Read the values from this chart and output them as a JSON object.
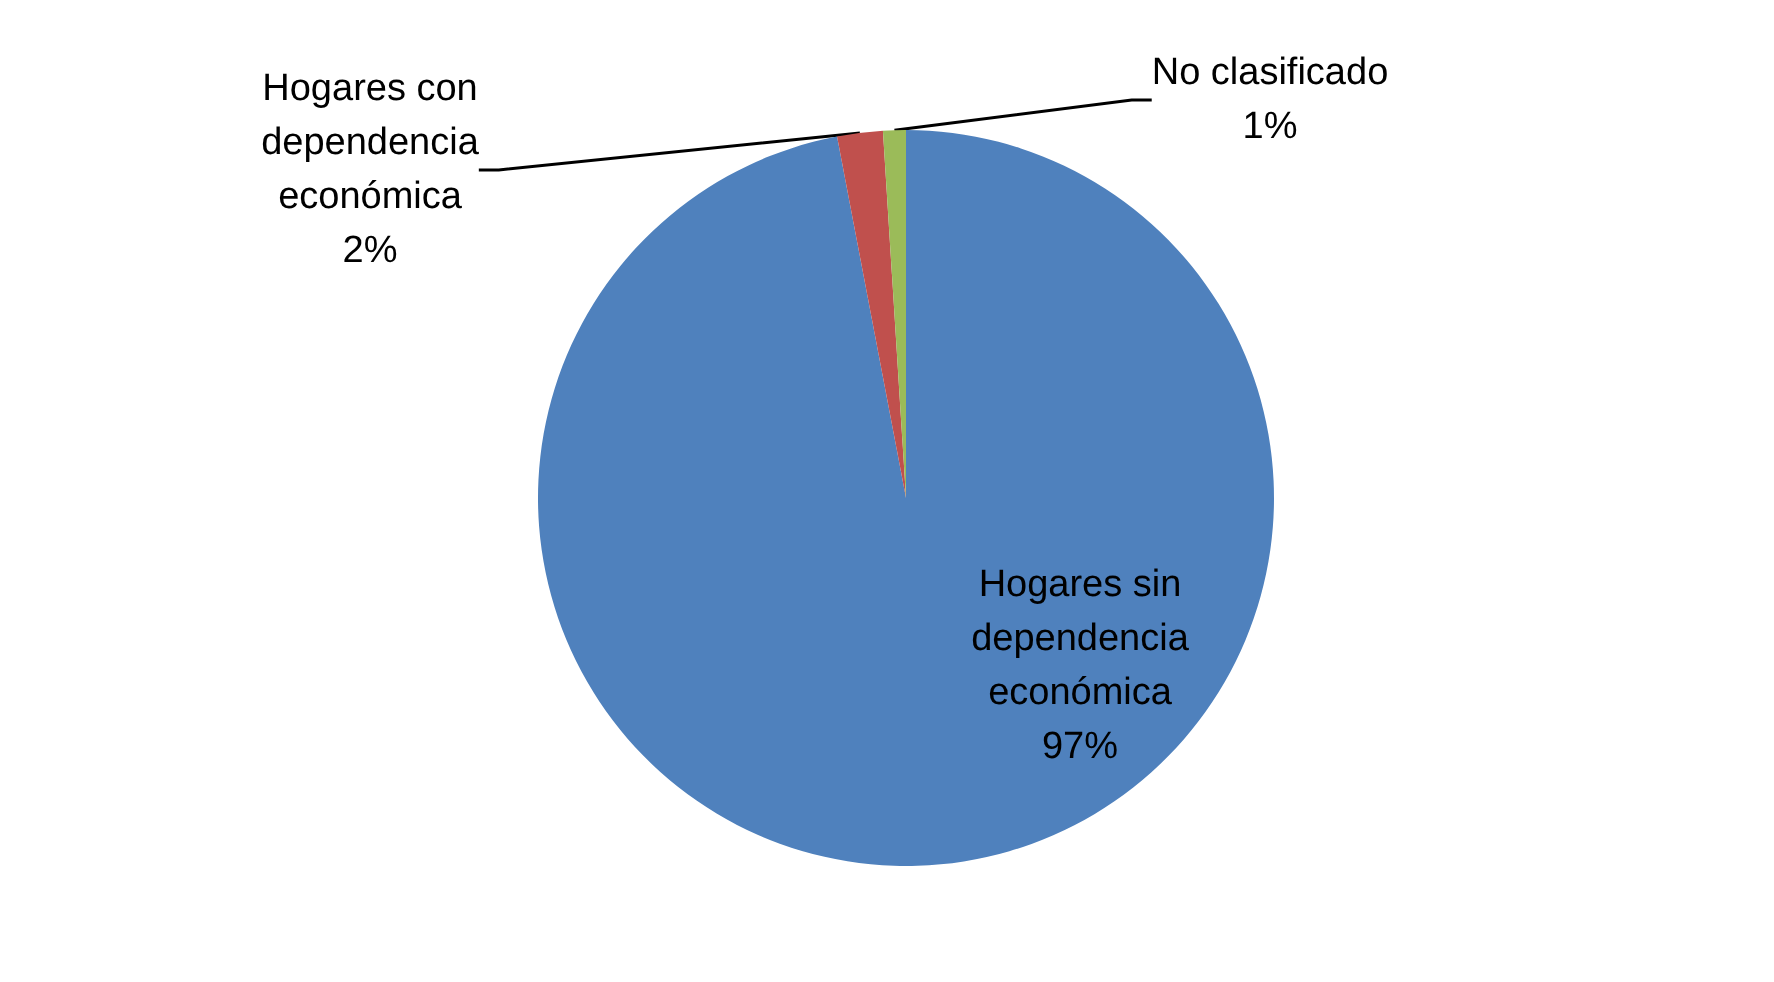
{
  "chart_data": {
    "type": "pie",
    "categories": [
      "Hogares sin dependencia económica",
      "Hogares con dependencia económica",
      "No clasificado"
    ],
    "values": [
      97,
      2,
      1
    ],
    "value_labels": [
      "97%",
      "2%",
      "1%"
    ],
    "colors": [
      "#4f81bd",
      "#c0504d",
      "#9bbb59"
    ],
    "legend": false
  }
}
